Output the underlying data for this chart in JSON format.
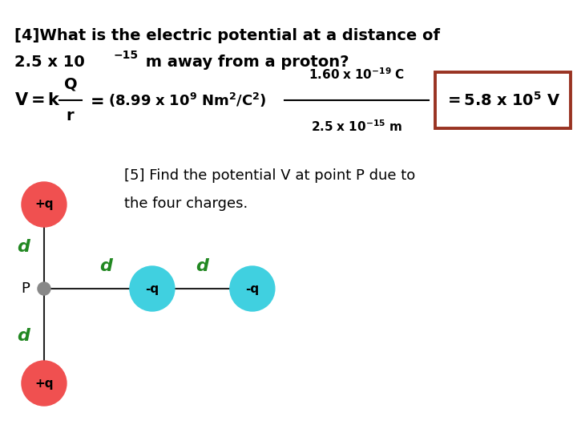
{
  "bg_color": "#ffffff",
  "title_line1": "[4]What is the electric potential at a distance of",
  "title_line2_main": "2.5 x 10",
  "title_exp": "-15",
  "title_line2_rest": " m away from a proton?",
  "answer_box_color": "#993322",
  "plus_q_color": "#f05050",
  "minus_q_color": "#40d0e0",
  "line_color": "#222222",
  "d_label_color": "#228822",
  "d_label_fontsize": 16,
  "p_dot_color": "#888888",
  "label5_text": "[5] Find the potential V at point P due to\nthe four charges."
}
